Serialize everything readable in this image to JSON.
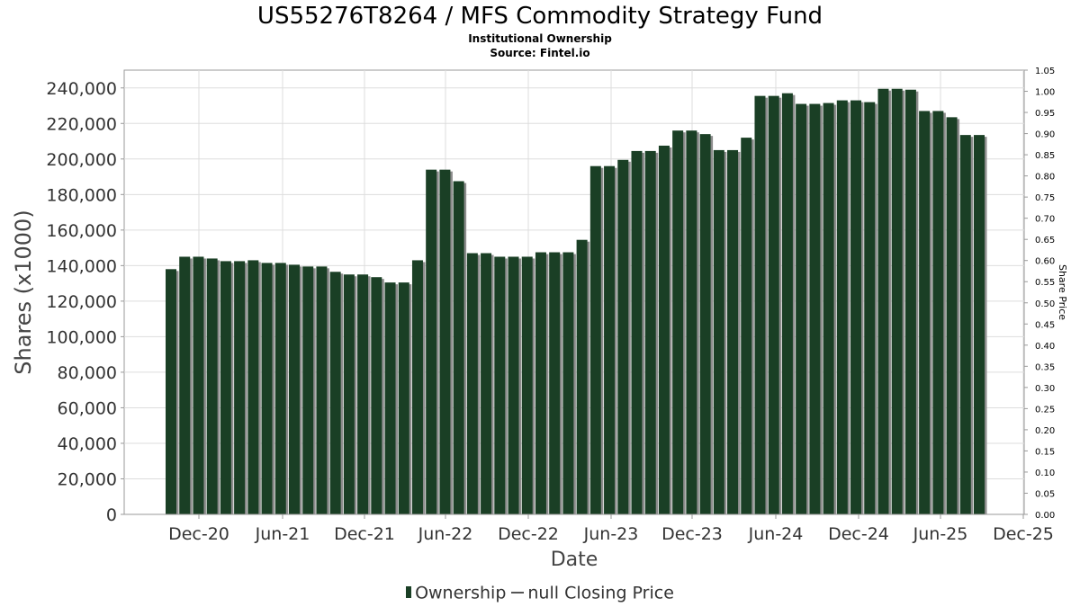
{
  "title": "US55276T8264 / MFS Commodity Strategy Fund",
  "subtitle": "Institutional Ownership",
  "source": "Source: Fintel.io",
  "legend": {
    "ownership_label": "Ownership",
    "price_label": "null Closing Price"
  },
  "colors": {
    "bar": "#1a3f25",
    "bar_shadow": "#8c8c8c",
    "grid": "#dddddd",
    "axis": "#999999"
  },
  "chart_data": {
    "type": "bar",
    "title": "US55276T8264 / MFS Commodity Strategy Fund",
    "xlabel": "Date",
    "ylabel": "Shares (x1000)",
    "y2label": "Share Price",
    "ylim": [
      0,
      250000
    ],
    "y2lim": [
      0,
      1.05
    ],
    "x_tick_labels": [
      "Dec-20",
      "Jun-21",
      "Dec-21",
      "Jun-22",
      "Dec-22",
      "Jun-23",
      "Dec-23",
      "Jun-24",
      "Dec-24",
      "Jun-25",
      "Dec-25"
    ],
    "y_ticks": [
      0,
      20000,
      40000,
      60000,
      80000,
      100000,
      120000,
      140000,
      160000,
      180000,
      200000,
      220000,
      240000
    ],
    "y_tick_labels": [
      "0",
      "20,000",
      "40,000",
      "60,000",
      "80,000",
      "100,000",
      "120,000",
      "140,000",
      "160,000",
      "180,000",
      "200,000",
      "220,000",
      "240,000"
    ],
    "y2_tick_labels": [
      "0.00",
      "0.05",
      "0.10",
      "0.15",
      "0.20",
      "0.25",
      "0.30",
      "0.35",
      "0.40",
      "0.45",
      "0.50",
      "0.55",
      "0.60",
      "0.65",
      "0.70",
      "0.75",
      "0.80",
      "0.85",
      "0.90",
      "0.95",
      "1.00",
      "1.05"
    ],
    "grid": true,
    "legend_position": "bottom",
    "series": [
      {
        "name": "Ownership",
        "values": [
          138000,
          145000,
          145000,
          144000,
          142500,
          142500,
          143000,
          141500,
          141500,
          140500,
          139500,
          139500,
          136500,
          135000,
          135000,
          133500,
          130500,
          130500,
          143000,
          194000,
          194000,
          187500,
          147000,
          147000,
          145000,
          145000,
          145000,
          147500,
          147500,
          147500,
          154500,
          196000,
          196000,
          199500,
          204500,
          204500,
          207500,
          216000,
          216000,
          214000,
          205000,
          205000,
          212000,
          235500,
          235500,
          237000,
          231000,
          231000,
          231500,
          233000,
          233000,
          232000,
          239500,
          239500,
          239000,
          227000,
          227000,
          223500,
          213500,
          213500
        ]
      },
      {
        "name": "null Closing Price",
        "values": []
      }
    ]
  }
}
